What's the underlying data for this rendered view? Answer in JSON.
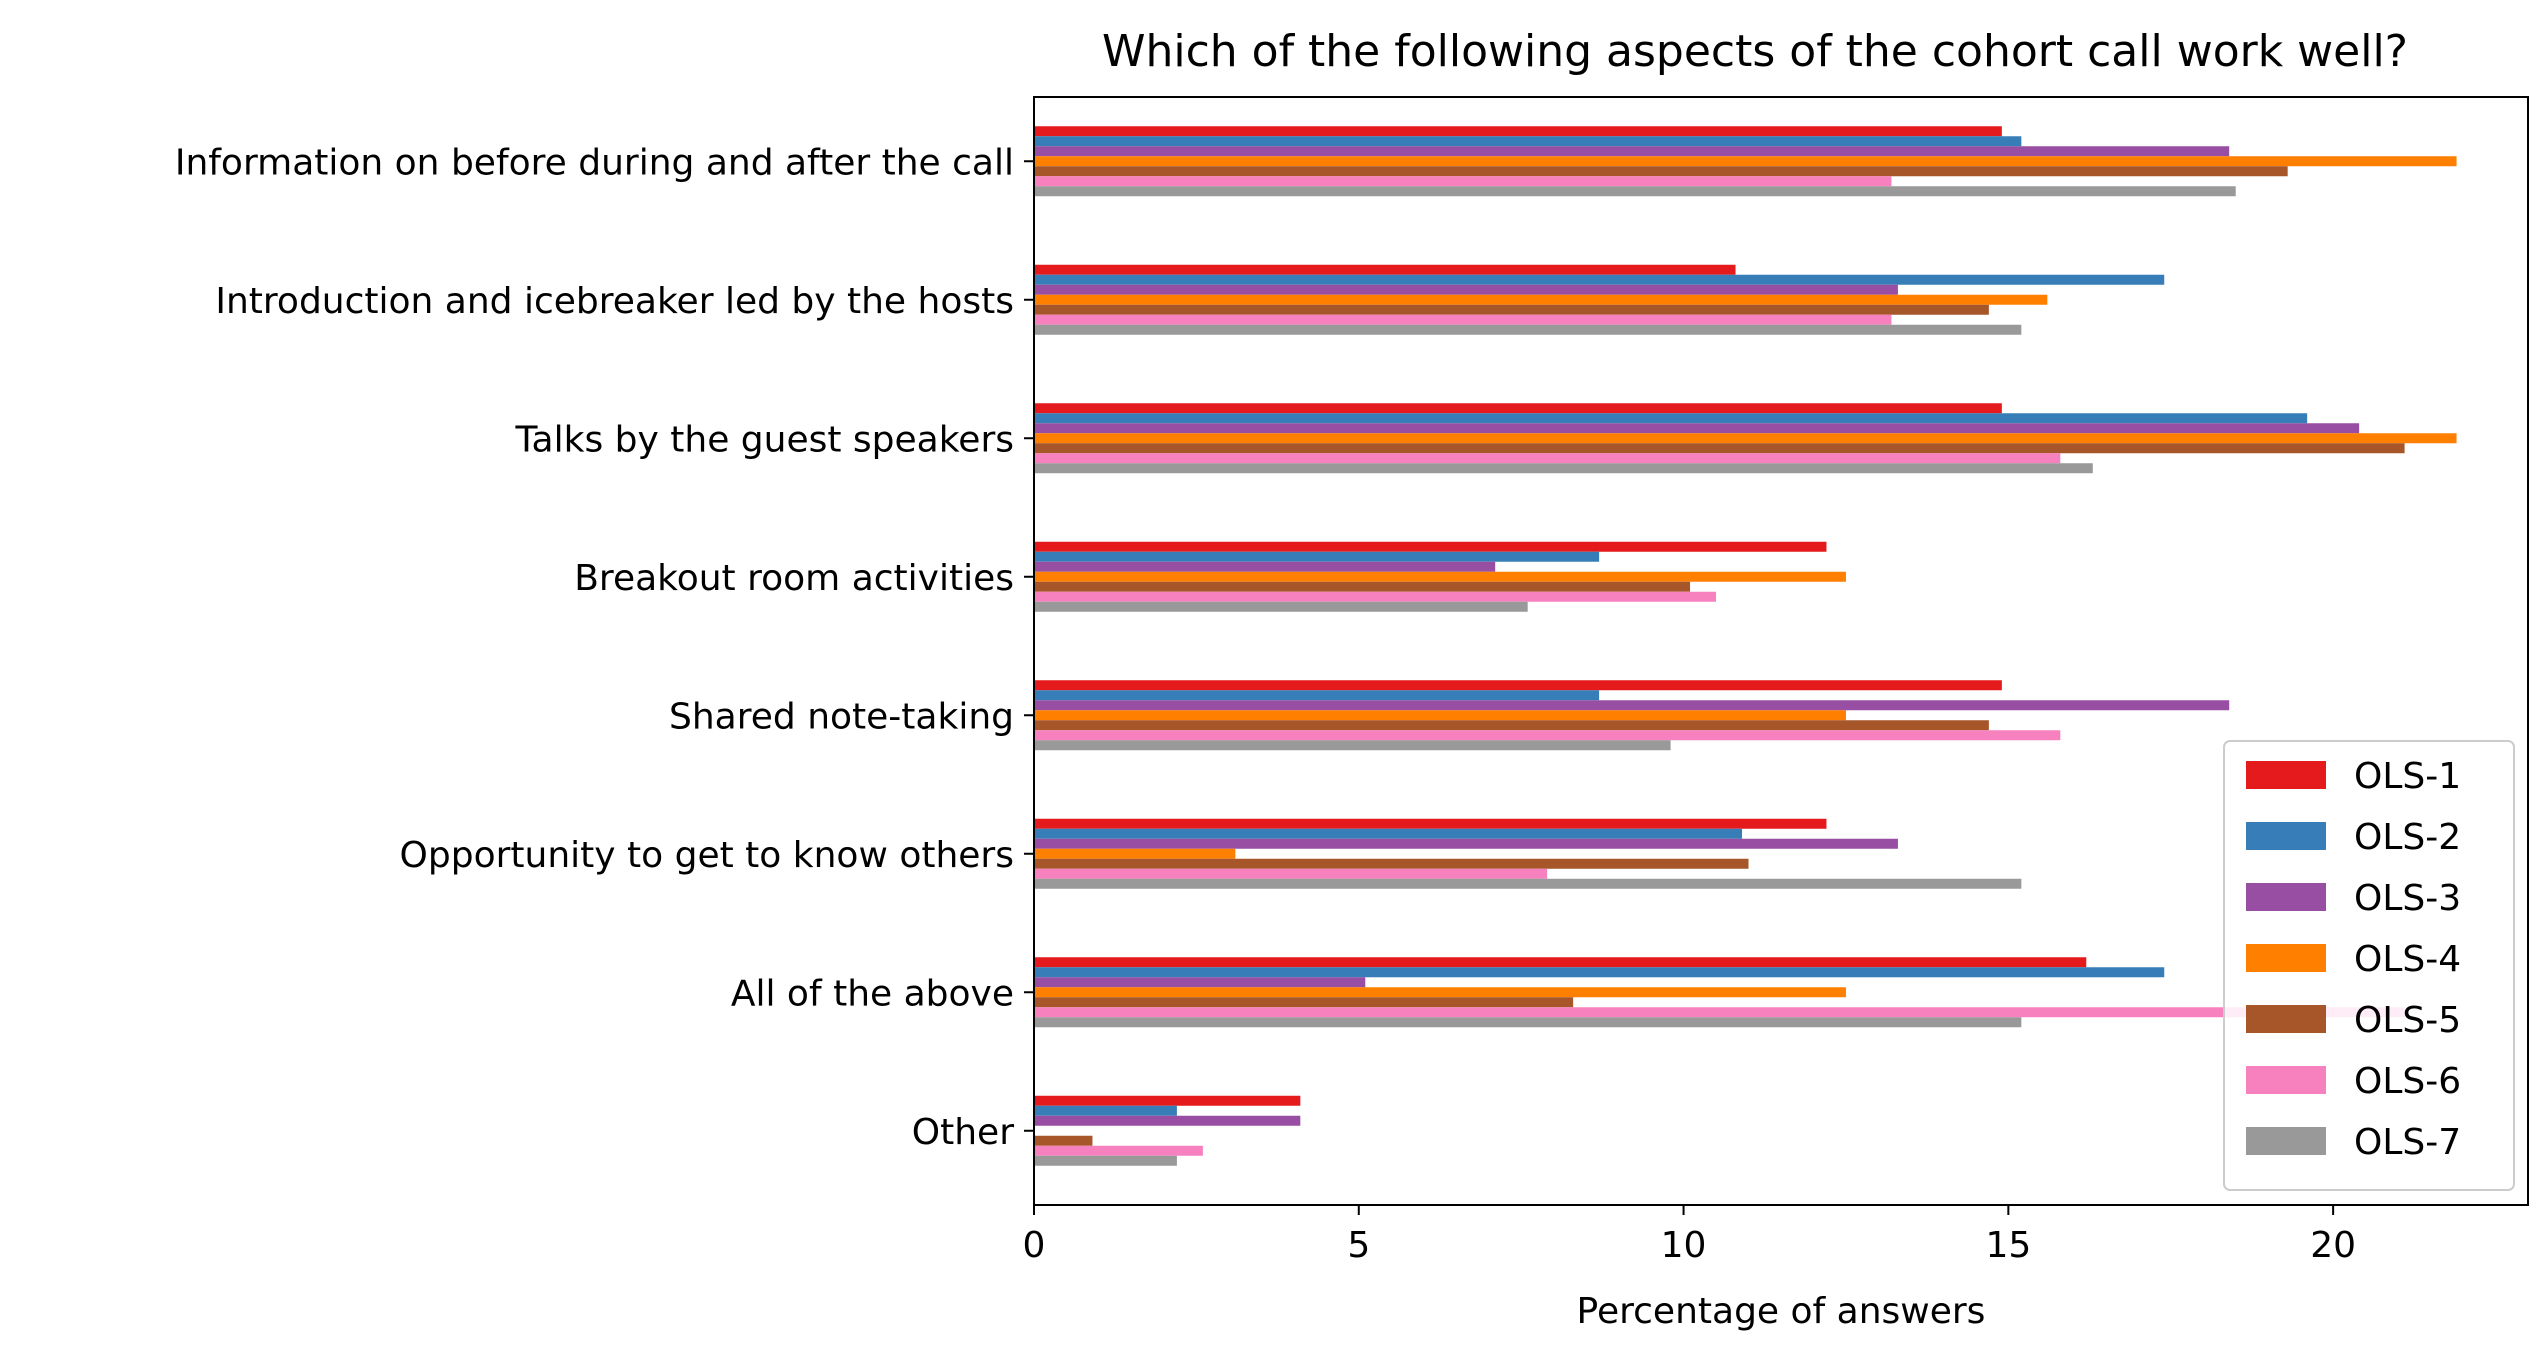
{
  "chart_data": {
    "type": "bar",
    "orientation": "horizontal",
    "title": "Which of the following aspects of the cohort call work well?",
    "xlabel": "Percentage of answers",
    "ylabel": "",
    "xlim": [
      0,
      23
    ],
    "xticks": [
      0,
      5,
      10,
      15,
      20
    ],
    "grid": false,
    "legend_position": "lower-right",
    "categories": [
      "Information on before during and after the call",
      "Introduction and icebreaker led by the hosts",
      "Talks by the guest speakers",
      "Breakout room activities",
      "Shared note-taking",
      "Opportunity to get to know others",
      "All of the above",
      "Other"
    ],
    "series": [
      {
        "name": "OLS-1",
        "color": "#e41a1c",
        "values": [
          14.9,
          10.8,
          14.9,
          12.2,
          14.9,
          12.2,
          16.2,
          4.1
        ]
      },
      {
        "name": "OLS-2",
        "color": "#377eb8",
        "values": [
          15.2,
          17.4,
          19.6,
          8.7,
          8.7,
          10.9,
          17.4,
          2.2
        ]
      },
      {
        "name": "OLS-3",
        "color": "#984ea3",
        "values": [
          18.4,
          13.3,
          20.4,
          7.1,
          18.4,
          13.3,
          5.1,
          4.1
        ]
      },
      {
        "name": "OLS-4",
        "color": "#ff7f00",
        "values": [
          21.9,
          15.6,
          21.9,
          12.5,
          12.5,
          3.1,
          12.5,
          0
        ]
      },
      {
        "name": "OLS-5",
        "color": "#a65628",
        "values": [
          19.3,
          14.7,
          21.1,
          10.1,
          14.7,
          11.0,
          8.3,
          0.9
        ]
      },
      {
        "name": "OLS-6",
        "color": "#f781bf",
        "values": [
          13.2,
          13.2,
          15.8,
          10.5,
          15.8,
          7.9,
          21.1,
          2.6
        ]
      },
      {
        "name": "OLS-7",
        "color": "#999999",
        "values": [
          18.5,
          15.2,
          16.3,
          7.6,
          9.8,
          15.2,
          15.2,
          2.2
        ]
      }
    ]
  }
}
